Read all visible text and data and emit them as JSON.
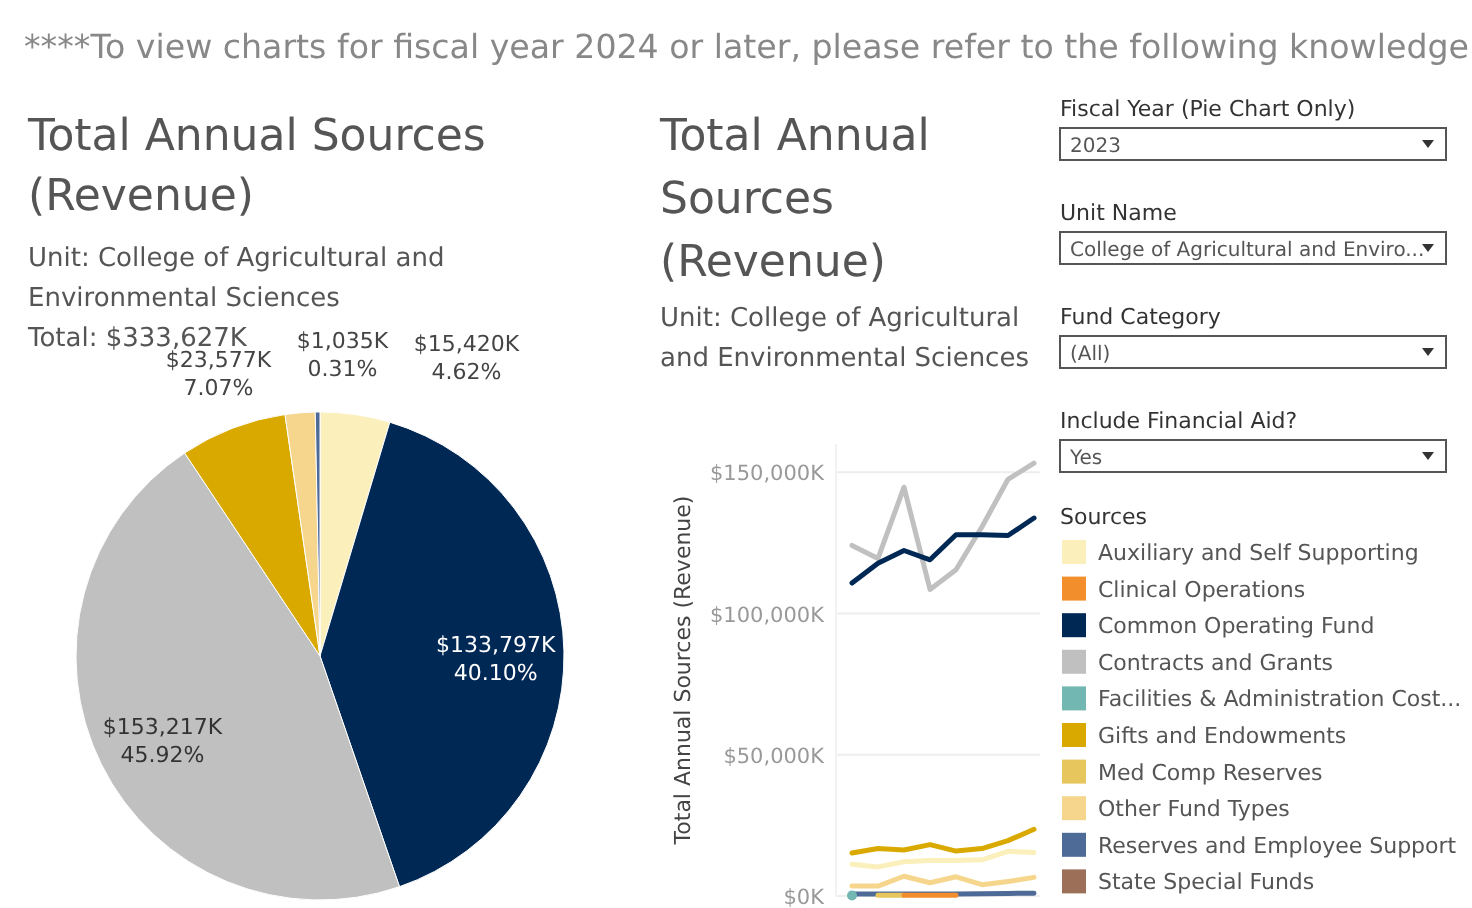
{
  "chart_data": [
    {
      "type": "other",
      "title": "****To view charts for fiscal year 2024 or later, please refer to the following knowledge",
      "annotations": [
        "Fiscal Year (Pie Chart Only)",
        "2023",
        "Unit Name",
        "College of Agricultural and Enviro...",
        "Fund Category",
        "(All)",
        "Include Financial Aid?",
        "Yes"
      ]
    },
    {
      "type": "pie",
      "title": "Total Annual Sources (Revenue)",
      "subtitle": "Unit: College of Agricultural and Environmental Sciences",
      "annotations": [
        "Total: $333,627K"
      ],
      "categories": [
        null,
        null,
        null,
        null,
        null,
        null
      ],
      "values": [
        4.62,
        40.1,
        45.92,
        7.07,
        1.98,
        0.31
      ],
      "value_labels": [
        "$15,420K\n4.62%",
        "$133,797K\n40.10%",
        "$153,217K\n45.92%",
        "$23,577K\n7.07%",
        null,
        "$1,035K\n0.31%"
      ],
      "colors": [
        "#fbefbb",
        "#002855",
        "#bfc0bf",
        "#daa900",
        "#f5d68c",
        "#4e6a97"
      ]
    },
    {
      "type": "line",
      "title": "Total Annual Sources (Revenue)",
      "subtitle": "Unit: College of Agricultural and Environmental Sciences",
      "ylabel": "Total Annual Sources (Revenue)",
      "legend_title": "Sources",
      "legend": "right",
      "grid": "y",
      "tick_labels": "y",
      "categories": [
        null,
        null,
        null,
        null,
        null,
        null,
        null,
        null
      ],
      "ylim": [
        0,
        160000
      ],
      "yticks": [
        {
          "value": 0,
          "label": "$0K"
        },
        {
          "value": 50000,
          "label": "$50,000K"
        },
        {
          "value": 100000,
          "label": "$100,000K"
        },
        {
          "value": 150000,
          "label": "$150,000K"
        }
      ],
      "series": [
        {
          "name": "Auxiliary and Self Supporting",
          "color": "#fbefbb",
          "values": [
            11200,
            10300,
            12100,
            12600,
            12600,
            12800,
            15800,
            15400
          ]
        },
        {
          "name": "Clinical Operations",
          "color": "#f28e2b",
          "values": [
            null,
            null,
            300,
            300,
            300,
            null,
            null,
            null
          ]
        },
        {
          "name": "Common Operating Fund",
          "color": "#002855",
          "values": [
            110800,
            117800,
            122300,
            119000,
            127900,
            127900,
            127600,
            133800
          ]
        },
        {
          "name": "Contracts and Grants",
          "color": "#bfc0bf",
          "values": [
            124100,
            119500,
            144700,
            108500,
            115500,
            130700,
            147500,
            153200
          ]
        },
        {
          "name": "Facilities & Administration Cost...",
          "color": "#72b7b2",
          "marker": "circle",
          "values": [
            200,
            null,
            null,
            null,
            null,
            null,
            null,
            null
          ]
        },
        {
          "name": "Gifts and Endowments",
          "color": "#daa900",
          "values": [
            15200,
            16800,
            16300,
            18200,
            15900,
            16800,
            19600,
            23600
          ]
        },
        {
          "name": "Med Comp Reserves",
          "color": "#e8c65e",
          "values": [
            null,
            300,
            300,
            null,
            null,
            null,
            null,
            null
          ]
        },
        {
          "name": "Other Fund Types",
          "color": "#f5d68c",
          "values": [
            3500,
            3500,
            7000,
            4700,
            6800,
            4000,
            5100,
            6600
          ]
        },
        {
          "name": "Reserves and Employee Support",
          "color": "#4e6a97",
          "values": [
            700,
            700,
            700,
            700,
            700,
            800,
            900,
            1000
          ]
        },
        {
          "name": "State Special Funds",
          "color": "#9c7058",
          "values": [
            null,
            null,
            null,
            null,
            null,
            null,
            null,
            null
          ]
        }
      ]
    }
  ]
}
